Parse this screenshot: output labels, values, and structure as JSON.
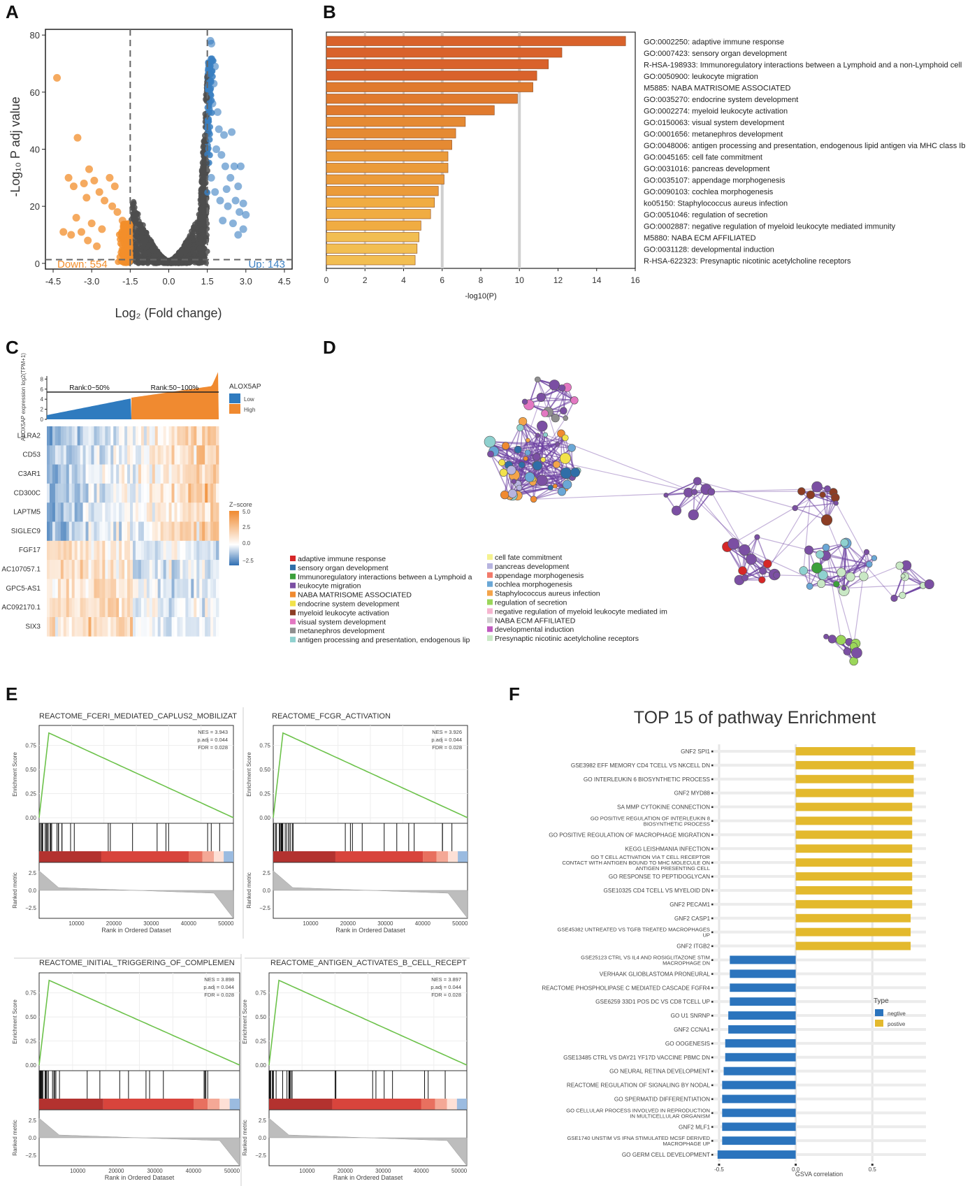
{
  "panels": {
    "a": "A",
    "b": "B",
    "c": "C",
    "d": "D",
    "e": "E",
    "f": "F"
  },
  "chart_data": [
    {
      "id": "A",
      "type": "scatter",
      "title": "",
      "xlabel": "Log₂ (Fold change)",
      "ylabel": "-Log₁₀ P adj value",
      "xlim": [
        -4.8,
        4.8
      ],
      "ylim": [
        -2,
        82
      ],
      "xticks": [
        "-4.5",
        "-3.0",
        "-1.5",
        "0.0",
        "1.5",
        "3.0",
        "4.5"
      ],
      "yticks": [
        "0",
        "20",
        "40",
        "60",
        "80"
      ],
      "thresholds": {
        "fc": [
          -1.5,
          1.5
        ],
        "p": 1.3
      },
      "down_label": "Down: 554",
      "up_label": "Up: 143",
      "colors": {
        "down": "#f28e2b",
        "ns": "#4d4d4d",
        "up": "#3a7fc1"
      },
      "down_points": [
        [
          -4.35,
          65
        ],
        [
          -3.55,
          44
        ],
        [
          -3.9,
          30
        ],
        [
          -3.7,
          27
        ],
        [
          -3.1,
          33
        ],
        [
          -3.3,
          28
        ],
        [
          -2.9,
          29
        ],
        [
          -2.3,
          30
        ],
        [
          -2.1,
          27
        ],
        [
          -3.2,
          23
        ],
        [
          -2.7,
          25
        ],
        [
          -2.5,
          22
        ],
        [
          -3.6,
          16
        ],
        [
          -3.4,
          11
        ],
        [
          -3.8,
          10
        ],
        [
          -4.1,
          11
        ],
        [
          -3.0,
          14
        ],
        [
          -2.2,
          20
        ],
        [
          -2.0,
          18
        ],
        [
          -1.8,
          15
        ],
        [
          -2.6,
          12
        ],
        [
          -3.15,
          8
        ],
        [
          -2.8,
          6
        ]
      ],
      "up_points": [
        [
          1.62,
          78
        ],
        [
          1.66,
          77
        ],
        [
          1.8,
          69
        ],
        [
          1.75,
          63
        ],
        [
          1.55,
          61
        ],
        [
          1.7,
          56
        ],
        [
          1.9,
          53
        ],
        [
          1.95,
          47
        ],
        [
          2.15,
          45
        ],
        [
          1.85,
          40
        ],
        [
          2.05,
          38
        ],
        [
          2.2,
          34
        ],
        [
          2.45,
          46
        ],
        [
          2.55,
          34
        ],
        [
          2.8,
          34
        ],
        [
          2.4,
          30
        ],
        [
          2.7,
          27
        ],
        [
          2.6,
          22
        ],
        [
          2.9,
          21
        ],
        [
          2.75,
          18
        ],
        [
          3.0,
          17
        ],
        [
          2.5,
          14
        ],
        [
          2.9,
          12
        ],
        [
          2.7,
          10
        ],
        [
          2.3,
          20
        ],
        [
          2.1,
          15
        ],
        [
          1.8,
          25
        ],
        [
          1.65,
          30
        ],
        [
          2.25,
          26
        ],
        [
          2.0,
          22
        ]
      ]
    },
    {
      "id": "B",
      "type": "bar",
      "orientation": "horizontal",
      "xlabel": "-log10(P)",
      "xlim": [
        0,
        16
      ],
      "xticks": [
        "0",
        "2",
        "4",
        "6",
        "8",
        "10",
        "12",
        "14",
        "16"
      ],
      "categories": [
        "GO:0002250: adaptive immune response",
        "GO:0007423: sensory organ development",
        "R-HSA-198933: Immunoregulatory interactions between a Lymphoid and a non-Lymphoid cell",
        "GO:0050900: leukocyte migration",
        "M5885: NABA MATRISOME ASSOCIATED",
        "GO:0035270: endocrine system development",
        "GO:0002274: myeloid leukocyte activation",
        "GO:0150063: visual system development",
        "GO:0001656: metanephros development",
        "GO:0048006: antigen processing and presentation, endogenous lipid antigen via MHC class Ib",
        "GO:0045165: cell fate commitment",
        "GO:0031016: pancreas development",
        "GO:0035107: appendage morphogenesis",
        "GO:0090103: cochlea morphogenesis",
        "ko05150: Staphylococcus aureus infection",
        "GO:0051046: regulation of secretion",
        "GO:0002887: negative regulation of myeloid leukocyte mediated immunity",
        "M5880: NABA ECM AFFILIATED",
        "GO:0031128: developmental induction",
        "R-HSA-622323: Presynaptic nicotinic acetylcholine receptors"
      ],
      "values": [
        15.5,
        12.2,
        11.5,
        10.9,
        10.7,
        9.9,
        8.7,
        7.2,
        6.7,
        6.5,
        6.3,
        6.3,
        6.1,
        5.8,
        5.6,
        5.4,
        4.9,
        4.8,
        4.7,
        4.6
      ],
      "colors": [
        "#d9622b",
        "#e07a2e",
        "#e58a33",
        "#eb9b3a",
        "#f0ac42",
        "#f2be52"
      ]
    },
    {
      "id": "C",
      "type": "heatmap",
      "ylabel": "ALOX5AP expression log2(TPM+1)",
      "yticks": [
        "0",
        "2",
        "4",
        "6",
        "8"
      ],
      "rank_labels": [
        "Rank:0~50%",
        "Rank:50~100%"
      ],
      "legend_title": "ALOX5AP",
      "legend": [
        "Low",
        "High"
      ],
      "legend_colors": [
        "#2f7bbf",
        "#f08a30"
      ],
      "genes": [
        "LILRA2",
        "CD53",
        "C3AR1",
        "CD300C",
        "LAPTM5",
        "SIGLEC9",
        "FGF17",
        "AC107057.1",
        "GPC5-AS1",
        "AC092170.1",
        "SIX3"
      ],
      "zscore_title": "Z−score",
      "zscore_ticks": [
        "5.0",
        "2.5",
        "0.0",
        "−2.5"
      ]
    },
    {
      "id": "D",
      "type": "network",
      "legend_left": [
        "adaptive immune response",
        "sensory organ development",
        "Immunoregulatory interactions between a Lymphoid a",
        "leukocyte migration",
        "NABA MATRISOME ASSOCIATED",
        "endocrine system development",
        "myeloid leukocyte activation",
        "visual system development",
        "metanephros development",
        "antigen processing and presentation, endogenous lip"
      ],
      "legend_left_colors": [
        "#d62728",
        "#2f6ea8",
        "#3ca03c",
        "#7b4fa3",
        "#f08a30",
        "#f2e24a",
        "#8c3d24",
        "#e377c2",
        "#8f8f8f",
        "#8fd1cf"
      ],
      "legend_right": [
        "cell fate commitment",
        "pancreas development",
        "appendage morphogenesis",
        "cochlea morphogenesis",
        "Staphylococcus aureus infection",
        "regulation of secretion",
        "negative regulation of myeloid leukocyte mediated im",
        "NABA ECM AFFILIATED",
        "developmental induction",
        "Presynaptic nicotinic acetylcholine receptors"
      ],
      "legend_right_colors": [
        "#f5f28f",
        "#b7b4e0",
        "#f27a6b",
        "#6aa7d6",
        "#f4a44a",
        "#9bd65a",
        "#f6b5d0",
        "#d0d0d0",
        "#c05bc0",
        "#c9e8c5"
      ]
    },
    {
      "id": "E",
      "type": "line",
      "xlabel": "Rank in Ordered Dataset",
      "ylabel_top": "Enrichment Score",
      "ylabel_bottom": "Ranked metric",
      "es_ticks": [
        "0.75",
        "0.50",
        "0.25",
        "0.00"
      ],
      "metric_ticks": [
        "2.5",
        "0.0",
        "−2.5"
      ],
      "xticks": [
        "10000",
        "20000",
        "30000",
        "40000",
        "50000"
      ],
      "plots": [
        {
          "title": "REACTOME_FCERI_MEDIATED_CAPLUS2_MOBILIZAT",
          "nes": "NES = 3.943",
          "padj": "p.adj = 0.044",
          "fdr": "FDR = 0.028"
        },
        {
          "title": "REACTOME_FCGR_ACTIVATION",
          "nes": "NES = 3.926",
          "padj": "p.adj = 0.044",
          "fdr": "FDR = 0.028"
        },
        {
          "title": "REACTOME_INITIAL_TRIGGERING_OF_COMPLEMEN",
          "nes": "NES = 3.898",
          "padj": "p.adj = 0.044",
          "fdr": "FDR = 0.028"
        },
        {
          "title": "REACTOME_ANTIGEN_ACTIVATES_B_CELL_RECEPT",
          "nes": "NES = 3.897",
          "padj": "p.adj = 0.044",
          "fdr": "FDR = 0.028"
        }
      ]
    },
    {
      "id": "F",
      "type": "bar",
      "orientation": "horizontal",
      "title": "TOP 15 of pathway Enrichment",
      "xlabel": "GSVA correlation",
      "xlim": [
        -0.55,
        0.85
      ],
      "xticks": [
        "-0.5",
        "0.0",
        "0.5"
      ],
      "legend_title": "Type",
      "legend": [
        "negtive",
        "postive"
      ],
      "colors": {
        "negtive": "#2b74bd",
        "postive": "#e3b92d"
      },
      "categories": [
        "GNF2 SPI1",
        "GSE3982 EFF MEMORY CD4 TCELL VS NKCELL DN",
        "GO INTERLEUKIN 6 BIOSYNTHETIC PROCESS",
        "GNF2 MYD88",
        "SA MMP CYTOKINE CONNECTION",
        "GO POSITIVE REGULATION OF INTERLEUKIN 8 BIOSYNTHETIC PROCESS",
        "GO POSITIVE REGULATION OF MACROPHAGE MIGRATION",
        "KEGG LEISHMANIA INFECTION",
        "GO T CELL ACTIVATION VIA T CELL RECEPTOR CONTACT WITH ANTIGEN BOUND TO MHC MOLECULE ON ANTIGEN PRESENTING CELL",
        "GO RESPONSE TO PEPTIDOGLYCAN",
        "GSE10325 CD4 TCELL VS MYELOID DN",
        "GNF2 PECAM1",
        "GNF2 CASP1",
        "GSE45382 UNTREATED VS TGFB TREATED MACROPHAGES UP",
        "GNF2 ITGB2",
        "GSE25123 CTRL VS IL4 AND ROSIGLITAZONE STIM MACROPHAGE DN",
        "VERHAAK GLIOBLASTOMA PRONEURAL",
        "REACTOME PHOSPHOLIPASE C MEDIATED CASCADE FGFR4",
        "GSE6259 33D1 POS DC VS CD8 TCELL UP",
        "GO U1 SNRNP",
        "GNF2 CCNA1",
        "GO OOGENESIS",
        "GSE13485 CTRL VS DAY21 YF17D VACCINE PBMC DN",
        "GO NEURAL RETINA DEVELOPMENT",
        "REACTOME REGULATION OF SIGNALING BY NODAL",
        "GO SPERMATID DIFFERENTIATION",
        "GO CELLULAR PROCESS INVOLVED IN REPRODUCTION IN MULTICELLULAR ORGANISM",
        "GNF2 MLF1",
        "GSE1740 UNSTIM VS IFNA STIMULATED MCSF DERIVED MACROPHAGE UP",
        "GO GERM CELL DEVELOPMENT"
      ],
      "values": [
        0.78,
        0.77,
        0.77,
        0.77,
        0.76,
        0.76,
        0.76,
        0.76,
        0.76,
        0.76,
        0.76,
        0.76,
        0.75,
        0.75,
        0.75,
        -0.43,
        -0.43,
        -0.43,
        -0.43,
        -0.44,
        -0.44,
        -0.46,
        -0.46,
        -0.47,
        -0.48,
        -0.48,
        -0.48,
        -0.48,
        -0.48,
        -0.51
      ],
      "types": [
        "postive",
        "postive",
        "postive",
        "postive",
        "postive",
        "postive",
        "postive",
        "postive",
        "postive",
        "postive",
        "postive",
        "postive",
        "postive",
        "postive",
        "postive",
        "negtive",
        "negtive",
        "negtive",
        "negtive",
        "negtive",
        "negtive",
        "negtive",
        "negtive",
        "negtive",
        "negtive",
        "negtive",
        "negtive",
        "negtive",
        "negtive",
        "negtive"
      ]
    }
  ]
}
